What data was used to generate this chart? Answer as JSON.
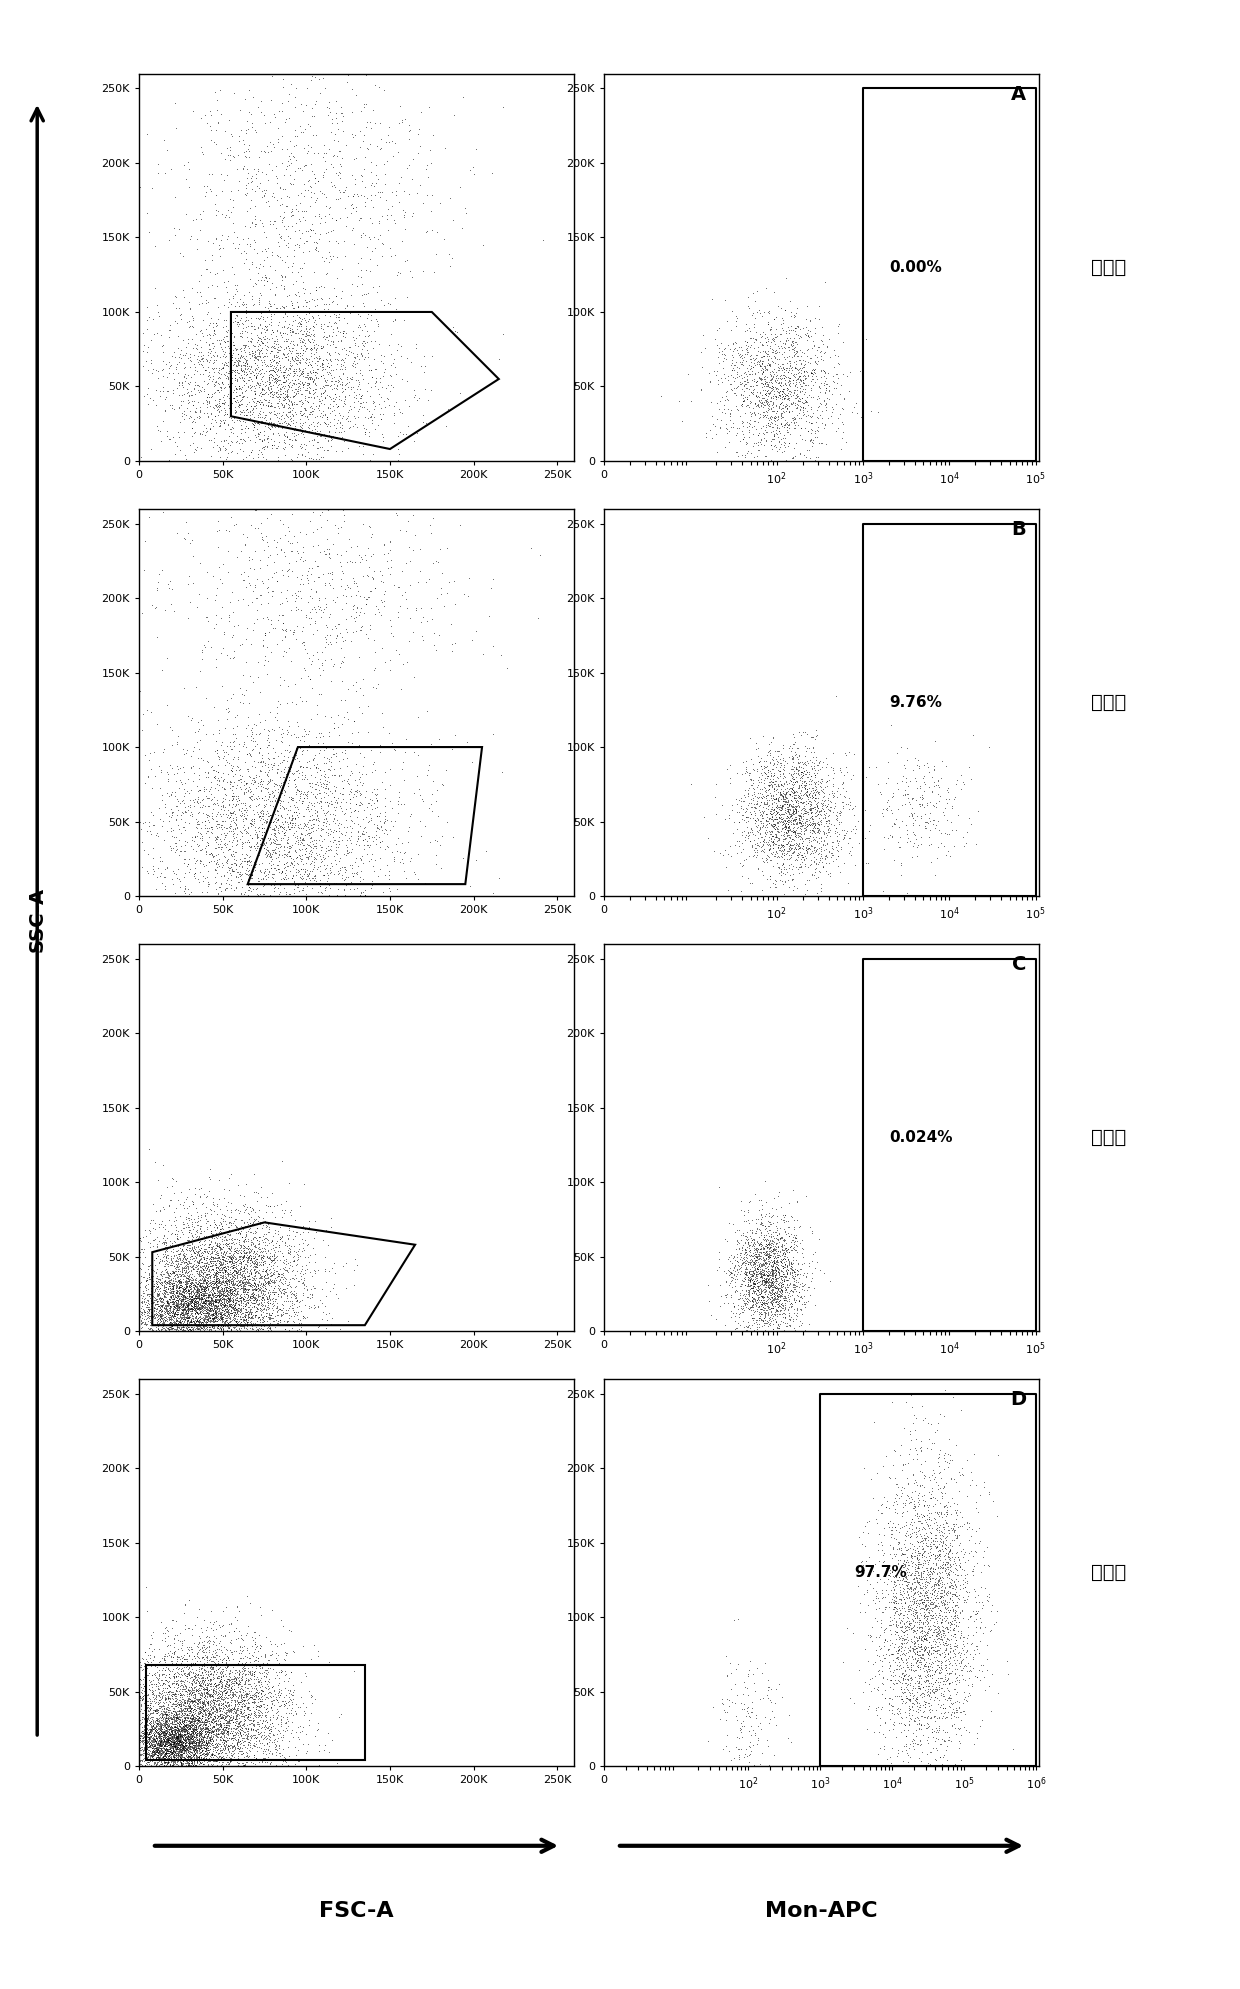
{
  "rows": [
    {
      "label": "未标记",
      "panel_letter": "A",
      "gate_percent": "0.00%",
      "row_type": "A"
    },
    {
      "label": "贴壁前",
      "panel_letter": "B",
      "gate_percent": "9.76%",
      "row_type": "B"
    },
    {
      "label": "未标记",
      "panel_letter": "C",
      "gate_percent": "0.024%",
      "row_type": "C"
    },
    {
      "label": "贴壁后",
      "panel_letter": "D",
      "gate_percent": "97.7%",
      "row_type": "D"
    }
  ],
  "xlabel_left": "FSC-A",
  "xlabel_right": "Mon-APC",
  "ylabel": "SSC-A",
  "left_yticks": [
    0,
    50000,
    100000,
    150000,
    200000,
    250000
  ],
  "left_ytick_labels": [
    "0",
    "50K",
    "100K",
    "150K",
    "200K",
    "250K"
  ],
  "left_xticks": [
    0,
    50000,
    100000,
    150000,
    200000,
    250000
  ],
  "left_xtick_labels": [
    "0",
    "50K",
    "100K",
    "150K",
    "200K",
    "250K"
  ],
  "right_yticks": [
    0,
    50000,
    100000,
    150000,
    200000,
    250000
  ],
  "right_ytick_labels": [
    "0",
    "50K",
    "100K",
    "150K",
    "200K",
    "250K"
  ],
  "right_xticks_ABC": [
    1,
    100,
    1000,
    10000,
    100000
  ],
  "right_xtick_labels_ABC": [
    "0",
    "$10^2$",
    "$10^3$",
    "$10^4$",
    "$10^5$"
  ],
  "right_xticks_D": [
    1,
    100,
    1000,
    10000,
    100000,
    1000000
  ],
  "right_xtick_labels_D": [
    "0",
    "$10^2$",
    "$10^3$",
    "$10^4$",
    "$10^5$",
    "$10^6$"
  ]
}
